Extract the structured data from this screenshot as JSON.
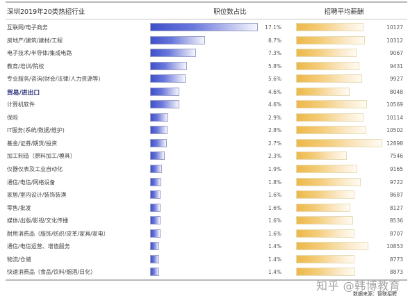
{
  "header": {
    "title": "深圳2019年20类热招行业",
    "share_col": "职位数占比",
    "salary_col": "招聘平均薪酬"
  },
  "rows": [
    {
      "industry": "互联网/电子商务",
      "share": "17.1%",
      "salary": "10127"
    },
    {
      "industry": "房地产/建筑/建材/工程",
      "share": "8.7%",
      "salary": "10312"
    },
    {
      "industry": "电子技术/半导体/集成电路",
      "share": "7.3%",
      "salary": "9067"
    },
    {
      "industry": "教育/培训/院校",
      "share": "5.8%",
      "salary": "9431"
    },
    {
      "industry": "专业服务/咨询(财会/法律/人力资源等)",
      "share": "5.6%",
      "salary": "9927"
    },
    {
      "industry": "贸易/进出口",
      "share": "4.6%",
      "salary": "8048",
      "highlight": true
    },
    {
      "industry": "计算机软件",
      "share": "4.6%",
      "salary": "10569"
    },
    {
      "industry": "保险",
      "share": "2.9%",
      "salary": "10114"
    },
    {
      "industry": "IT服务(系统/数据/维护)",
      "share": "2.8%",
      "salary": "10502"
    },
    {
      "industry": "基金/证券/期货/投资",
      "share": "2.7%",
      "salary": "12898"
    },
    {
      "industry": "加工制造（原料加工/模具）",
      "share": "2.3%",
      "salary": "7546"
    },
    {
      "industry": "仪器仪表及工业自动化",
      "share": "1.9%",
      "salary": "9165"
    },
    {
      "industry": "通信/电信/网络设备",
      "share": "1.8%",
      "salary": "9722"
    },
    {
      "industry": "家居/室内设计/装饰装潢",
      "share": "1.6%",
      "salary": "8687"
    },
    {
      "industry": "零售/批发",
      "share": "1.6%",
      "salary": "8127"
    },
    {
      "industry": "媒体/出版/影视/文化传播",
      "share": "1.6%",
      "salary": "8536"
    },
    {
      "industry": "耐用消费品（服饰/纺织/皮革/家具/家电）",
      "share": "1.6%",
      "salary": "8707"
    },
    {
      "industry": "通信/电信运营、增值服务",
      "share": "1.4%",
      "salary": "10853"
    },
    {
      "industry": "物流/仓储",
      "share": "1.4%",
      "salary": "8773"
    },
    {
      "industry": "快速消费品（食品/饮料/烟酒/日化）",
      "share": "1.4%",
      "salary": "8873"
    }
  ],
  "watermark": "知乎 @韩博教育",
  "source": "数据来源：智联招聘",
  "colors": {
    "share_bar": "#4050c8",
    "salary_bar": "#edb84a",
    "highlight_text": "#2a2e7a"
  },
  "chart_data": {
    "type": "bar",
    "title": "深圳2019年20类热招行业",
    "categories": [
      "互联网/电子商务",
      "房地产/建筑/建材/工程",
      "电子技术/半导体/集成电路",
      "教育/培训/院校",
      "专业服务/咨询(财会/法律/人力资源等)",
      "贸易/进出口",
      "计算机软件",
      "保险",
      "IT服务(系统/数据/维护)",
      "基金/证券/期货/投资",
      "加工制造（原料加工/模具）",
      "仪器仪表及工业自动化",
      "通信/电信/网络设备",
      "家居/室内设计/装饰装潢",
      "零售/批发",
      "媒体/出版/影视/文化传播",
      "耐用消费品（服饰/纺织/皮革/家具/家电）",
      "通信/电信运营、增值服务",
      "物流/仓储",
      "快速消费品（食品/饮料/烟酒/日化）"
    ],
    "series": [
      {
        "name": "职位数占比",
        "unit": "%",
        "values": [
          17.1,
          8.7,
          7.3,
          5.8,
          5.6,
          4.6,
          4.6,
          2.9,
          2.8,
          2.7,
          2.3,
          1.9,
          1.8,
          1.6,
          1.6,
          1.6,
          1.6,
          1.4,
          1.4,
          1.4
        ]
      },
      {
        "name": "招聘平均薪酬",
        "unit": "元",
        "values": [
          10127,
          10312,
          9067,
          9431,
          9927,
          8048,
          10569,
          10114,
          10502,
          12898,
          7546,
          9165,
          9722,
          8687,
          8127,
          8536,
          8707,
          10853,
          8773,
          8873
        ]
      }
    ],
    "orientation": "horizontal",
    "xlabel": "",
    "ylabel": "",
    "grid": false,
    "legend": "column headers",
    "annotation": "数据来源：智联招聘"
  }
}
